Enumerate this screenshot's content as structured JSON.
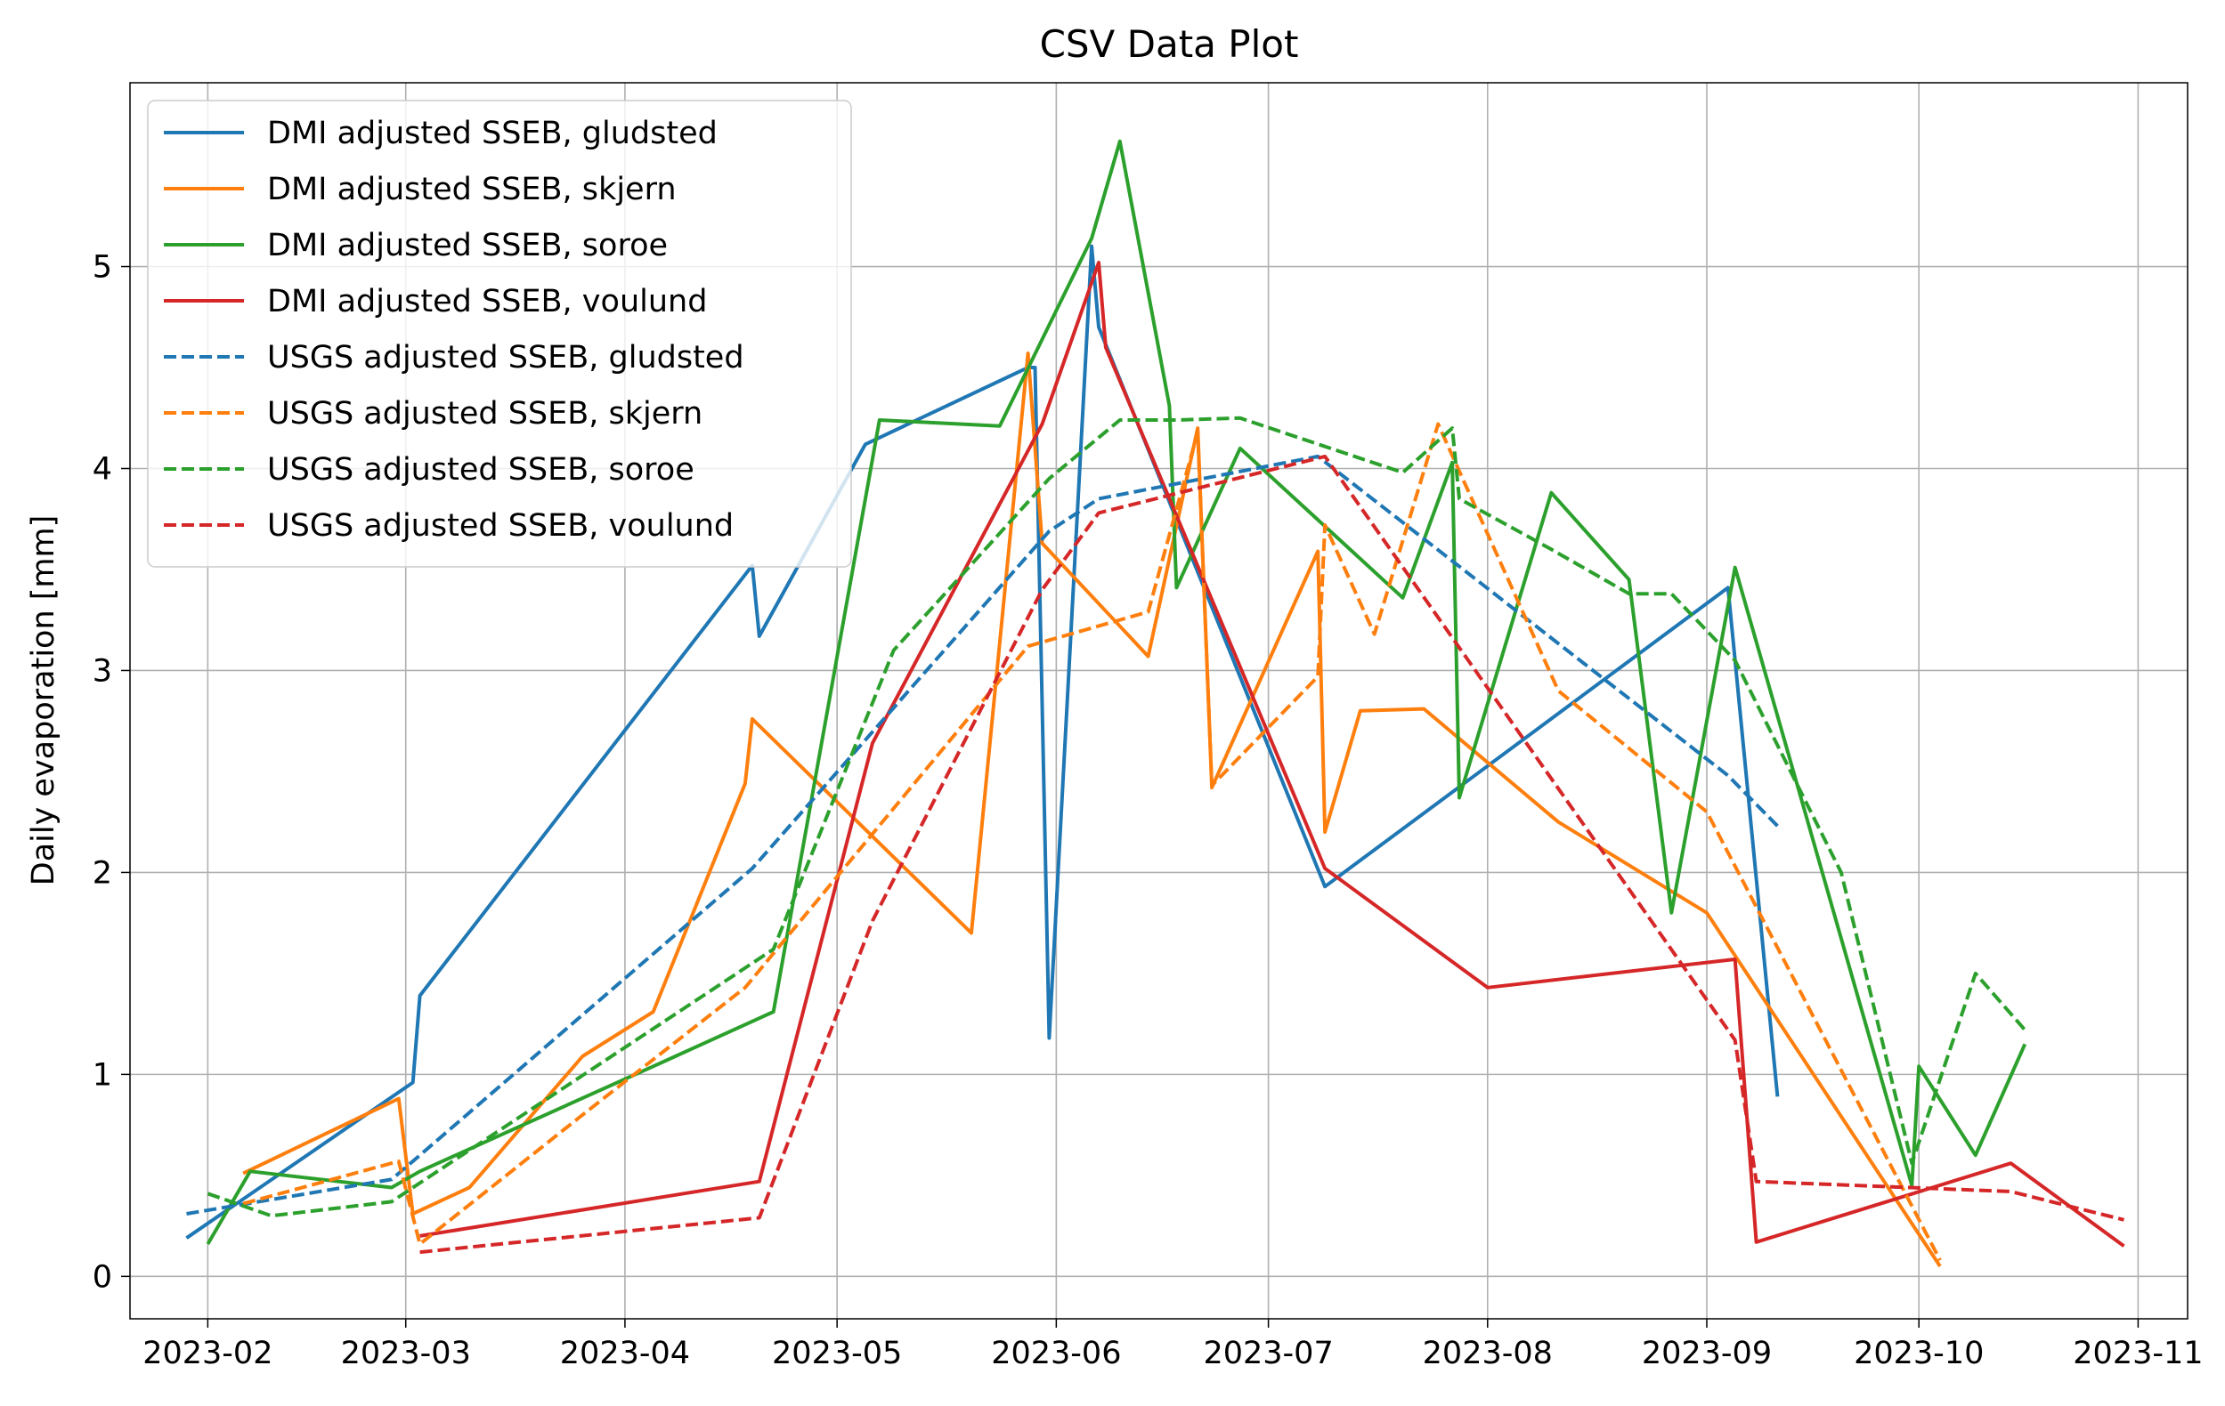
{
  "chart_data": {
    "type": "line",
    "title": "CSV Data Plot",
    "xlabel": "",
    "ylabel": "Daily evaporation [mm]",
    "x_axis_type": "date",
    "xlim": [
      "2023-01-21",
      "2023-11-08"
    ],
    "ylim": [
      -0.21,
      5.91
    ],
    "x_ticks": [
      "2023-02",
      "2023-03",
      "2023-04",
      "2023-05",
      "2023-06",
      "2023-07",
      "2023-08",
      "2023-09",
      "2023-10",
      "2023-11"
    ],
    "y_ticks": [
      0,
      1,
      2,
      3,
      4,
      5
    ],
    "grid": true,
    "legend_position": "top-left",
    "series": [
      {
        "name": "DMI adjusted SSEB, gludsted",
        "color": "#1f77b4",
        "dash": "solid",
        "points": [
          [
            "2023-01-29",
            0.19
          ],
          [
            "2023-03-02",
            0.96
          ],
          [
            "2023-03-03",
            1.39
          ],
          [
            "2023-04-19",
            3.52
          ],
          [
            "2023-04-20",
            3.17
          ],
          [
            "2023-05-05",
            4.12
          ],
          [
            "2023-05-28",
            4.5
          ],
          [
            "2023-05-29",
            4.5
          ],
          [
            "2023-05-31",
            1.18
          ],
          [
            "2023-06-06",
            5.1
          ],
          [
            "2023-06-07",
            4.7
          ],
          [
            "2023-07-09",
            1.93
          ],
          [
            "2023-09-04",
            3.41
          ],
          [
            "2023-09-11",
            0.89
          ]
        ]
      },
      {
        "name": "DMI adjusted SSEB, skjern",
        "color": "#ff7f0e",
        "dash": "solid",
        "points": [
          [
            "2023-02-06",
            0.51
          ],
          [
            "2023-02-28",
            0.88
          ],
          [
            "2023-03-02",
            0.31
          ],
          [
            "2023-03-10",
            0.44
          ],
          [
            "2023-03-26",
            1.09
          ],
          [
            "2023-04-05",
            1.31
          ],
          [
            "2023-04-18",
            2.44
          ],
          [
            "2023-04-19",
            2.76
          ],
          [
            "2023-05-20",
            1.7
          ],
          [
            "2023-05-28",
            4.57
          ],
          [
            "2023-05-30",
            3.63
          ],
          [
            "2023-06-14",
            3.07
          ],
          [
            "2023-06-21",
            4.2
          ],
          [
            "2023-06-23",
            2.42
          ],
          [
            "2023-07-08",
            3.59
          ],
          [
            "2023-07-09",
            2.2
          ],
          [
            "2023-07-14",
            2.8
          ],
          [
            "2023-07-23",
            2.81
          ],
          [
            "2023-08-11",
            2.25
          ],
          [
            "2023-09-01",
            1.8
          ],
          [
            "2023-10-04",
            0.05
          ]
        ]
      },
      {
        "name": "DMI adjusted SSEB, soroe",
        "color": "#2ca02c",
        "dash": "solid",
        "points": [
          [
            "2023-02-01",
            0.16
          ],
          [
            "2023-02-07",
            0.52
          ],
          [
            "2023-02-27",
            0.44
          ],
          [
            "2023-03-03",
            0.52
          ],
          [
            "2023-04-05",
            1.04
          ],
          [
            "2023-04-22",
            1.31
          ],
          [
            "2023-05-07",
            4.24
          ],
          [
            "2023-05-24",
            4.21
          ],
          [
            "2023-06-06",
            5.14
          ],
          [
            "2023-06-10",
            5.62
          ],
          [
            "2023-06-17",
            4.31
          ],
          [
            "2023-06-18",
            3.41
          ],
          [
            "2023-06-27",
            4.1
          ],
          [
            "2023-07-20",
            3.36
          ],
          [
            "2023-07-27",
            4.03
          ],
          [
            "2023-07-28",
            2.37
          ],
          [
            "2023-08-10",
            3.88
          ],
          [
            "2023-08-21",
            3.45
          ],
          [
            "2023-08-27",
            1.8
          ],
          [
            "2023-09-05",
            3.51
          ],
          [
            "2023-09-30",
            0.45
          ],
          [
            "2023-10-01",
            1.04
          ],
          [
            "2023-10-09",
            0.6
          ],
          [
            "2023-10-16",
            1.15
          ]
        ]
      },
      {
        "name": "DMI adjusted SSEB, voulund",
        "color": "#d62728",
        "dash": "solid",
        "points": [
          [
            "2023-03-03",
            0.2
          ],
          [
            "2023-04-20",
            0.47
          ],
          [
            "2023-05-06",
            2.64
          ],
          [
            "2023-05-30",
            4.22
          ],
          [
            "2023-06-07",
            5.02
          ],
          [
            "2023-06-08",
            4.6
          ],
          [
            "2023-07-09",
            2.02
          ],
          [
            "2023-08-01",
            1.43
          ],
          [
            "2023-09-05",
            1.57
          ],
          [
            "2023-09-08",
            0.17
          ],
          [
            "2023-10-14",
            0.56
          ],
          [
            "2023-10-30",
            0.15
          ]
        ]
      },
      {
        "name": "USGS adjusted SSEB, gludsted",
        "color": "#1f77b4",
        "dash": "dashed",
        "points": [
          [
            "2023-01-29",
            0.31
          ],
          [
            "2023-02-27",
            0.48
          ],
          [
            "2023-03-03",
            0.6
          ],
          [
            "2023-04-19",
            2.02
          ],
          [
            "2023-05-31",
            3.69
          ],
          [
            "2023-06-07",
            3.85
          ],
          [
            "2023-07-08",
            4.06
          ],
          [
            "2023-09-04",
            2.48
          ],
          [
            "2023-09-11",
            2.23
          ]
        ]
      },
      {
        "name": "USGS adjusted SSEB, skjern",
        "color": "#ff7f0e",
        "dash": "dashed",
        "points": [
          [
            "2023-02-06",
            0.36
          ],
          [
            "2023-02-28",
            0.57
          ],
          [
            "2023-03-03",
            0.16
          ],
          [
            "2023-03-26",
            0.8
          ],
          [
            "2023-04-18",
            1.43
          ],
          [
            "2023-05-28",
            3.12
          ],
          [
            "2023-06-14",
            3.29
          ],
          [
            "2023-06-21",
            4.18
          ],
          [
            "2023-06-23",
            2.43
          ],
          [
            "2023-07-08",
            2.97
          ],
          [
            "2023-07-09",
            3.72
          ],
          [
            "2023-07-16",
            3.18
          ],
          [
            "2023-07-25",
            4.22
          ],
          [
            "2023-08-11",
            2.9
          ],
          [
            "2023-09-01",
            2.3
          ],
          [
            "2023-10-04",
            0.08
          ]
        ]
      },
      {
        "name": "USGS adjusted SSEB, soroe",
        "color": "#2ca02c",
        "dash": "dashed",
        "points": [
          [
            "2023-02-01",
            0.41
          ],
          [
            "2023-02-10",
            0.3
          ],
          [
            "2023-02-27",
            0.37
          ],
          [
            "2023-04-22",
            1.62
          ],
          [
            "2023-05-09",
            3.1
          ],
          [
            "2023-05-31",
            3.95
          ],
          [
            "2023-06-10",
            4.24
          ],
          [
            "2023-06-18",
            4.24
          ],
          [
            "2023-06-27",
            4.25
          ],
          [
            "2023-07-20",
            3.98
          ],
          [
            "2023-07-27",
            4.2
          ],
          [
            "2023-07-28",
            3.85
          ],
          [
            "2023-08-10",
            3.6
          ],
          [
            "2023-08-21",
            3.38
          ],
          [
            "2023-08-27",
            3.38
          ],
          [
            "2023-09-05",
            3.05
          ],
          [
            "2023-09-20",
            2.0
          ],
          [
            "2023-09-30",
            0.56
          ],
          [
            "2023-10-09",
            1.5
          ],
          [
            "2023-10-16",
            1.22
          ]
        ]
      },
      {
        "name": "USGS adjusted SSEB, voulund",
        "color": "#d62728",
        "dash": "dashed",
        "points": [
          [
            "2023-03-03",
            0.12
          ],
          [
            "2023-04-20",
            0.29
          ],
          [
            "2023-05-06",
            1.76
          ],
          [
            "2023-05-30",
            3.4
          ],
          [
            "2023-06-07",
            3.78
          ],
          [
            "2023-07-09",
            4.06
          ],
          [
            "2023-09-05",
            1.17
          ],
          [
            "2023-09-08",
            0.47
          ],
          [
            "2023-10-14",
            0.42
          ],
          [
            "2023-10-30",
            0.28
          ]
        ]
      }
    ]
  }
}
